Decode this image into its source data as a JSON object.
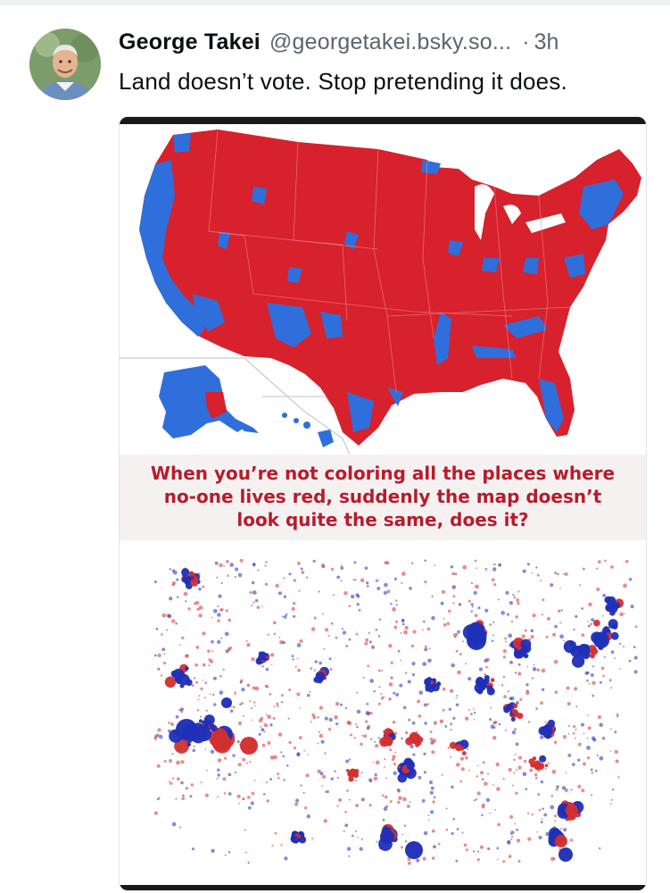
{
  "post": {
    "author": {
      "display_name": "George Takei",
      "handle": "@georgetakei.bsky.so...",
      "separator": "·",
      "age": "3h"
    },
    "text": "Land doesn’t vote. Stop pretending it does.",
    "image": {
      "caption_lines": [
        "When you’re not coloring all the places where",
        "no-one lives red, suddenly the map doesn’t",
        "look quite the same, does it?"
      ],
      "colors": {
        "republican_red": "#d7212c",
        "democrat_blue": "#2f6fdc",
        "bubble_blue": "#1f2fb8",
        "bubble_red": "#d32f2f",
        "caption_red": "#b71c2b"
      },
      "icons": [
        "us-county-map",
        "us-bubble-map"
      ]
    }
  }
}
